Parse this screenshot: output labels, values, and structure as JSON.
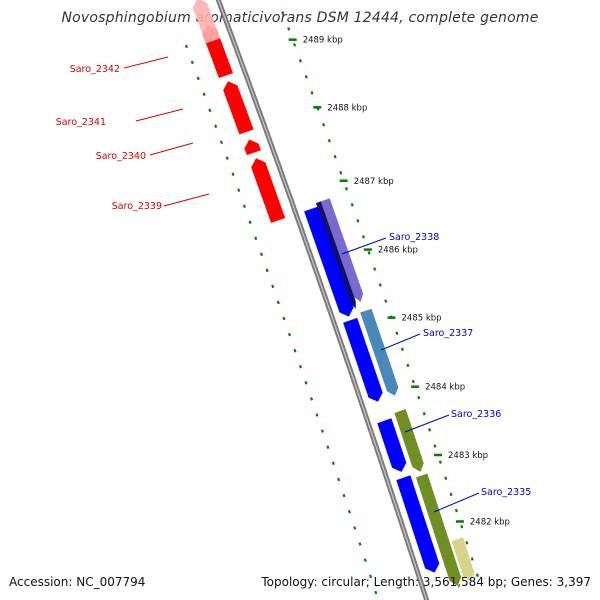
{
  "title": "Novosphingobium aromaticivorans DSM 12444, complete genome",
  "footer": {
    "accession": "Accession: NC_007794",
    "topology": "Topology: circular; Length: 3,561,584 bp; Genes: 3,397"
  },
  "ticks": [
    {
      "label": "2489 kbp"
    },
    {
      "label": "2488 kbp"
    },
    {
      "label": "2487 kbp"
    },
    {
      "label": "2486 kbp"
    },
    {
      "label": "2485 kbp"
    },
    {
      "label": "2484 kbp"
    },
    {
      "label": "2483 kbp"
    },
    {
      "label": "2482 kbp"
    }
  ],
  "genes": {
    "reverse": [
      {
        "name": "Saro_2342",
        "color": "#d40000"
      },
      {
        "name": "Saro_2341",
        "color": "#d40000"
      },
      {
        "name": "Saro_2340",
        "color": "#d40000"
      },
      {
        "name": "Saro_2339",
        "color": "#d40000"
      }
    ],
    "forward": [
      {
        "name": "Saro_2338",
        "color": "#0000cc"
      },
      {
        "name": "Saro_2337",
        "color": "#0000cc"
      },
      {
        "name": "Saro_2336",
        "color": "#0000cc"
      },
      {
        "name": "Saro_2335",
        "color": "#0000cc"
      }
    ]
  },
  "colors": {
    "reverse_cds": "#ff0000",
    "forward_cds": "#0000ff",
    "backbone": "#7a7a7a",
    "ticks": "#008000",
    "feature_purple": "#7a6acc",
    "feature_navy": "#101070",
    "feature_steelblue": "#4a88b8",
    "feature_olive": "#6f8f23",
    "feature_yellow": "#d8d38a"
  }
}
